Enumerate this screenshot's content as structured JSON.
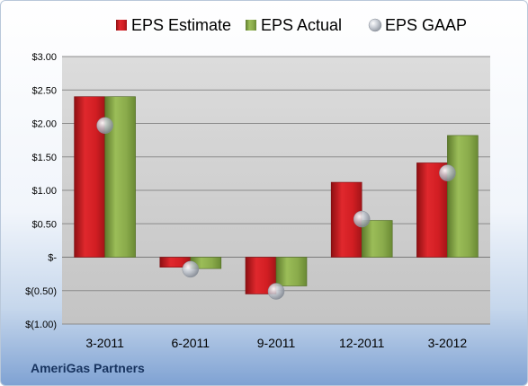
{
  "company_name": "AmeriGas Partners",
  "colors": {
    "estimate": "#d9262b",
    "actual": "#88a84a",
    "gaap": "#a8aeb8",
    "plot_background": "#d4d4d4",
    "gridline": "#8c8c8c"
  },
  "chart_data": {
    "type": "bar",
    "categories": [
      "3-2011",
      "6-2011",
      "9-2011",
      "12-2011",
      "3-2012"
    ],
    "series": [
      {
        "name": "EPS Estimate",
        "kind": "bar",
        "values": [
          2.4,
          -0.15,
          -0.55,
          1.12,
          1.41
        ]
      },
      {
        "name": "EPS Actual",
        "kind": "bar",
        "values": [
          2.4,
          -0.17,
          -0.43,
          0.55,
          1.82
        ]
      },
      {
        "name": "EPS GAAP",
        "kind": "marker",
        "values": [
          1.97,
          -0.18,
          -0.51,
          0.57,
          1.26
        ]
      }
    ],
    "ylim": [
      -1.0,
      3.0
    ],
    "yticks": [
      {
        "value": 3.0,
        "label": "$3.00"
      },
      {
        "value": 2.5,
        "label": "$2.50"
      },
      {
        "value": 2.0,
        "label": "$2.00"
      },
      {
        "value": 1.5,
        "label": "$1.50"
      },
      {
        "value": 1.0,
        "label": "$1.00"
      },
      {
        "value": 0.5,
        "label": "$0.50"
      },
      {
        "value": 0.0,
        "label": "$-"
      },
      {
        "value": -0.5,
        "label": "$(0.50)"
      },
      {
        "value": -1.0,
        "label": "$(1.00)"
      }
    ],
    "legend_position": "top",
    "grid": true
  }
}
